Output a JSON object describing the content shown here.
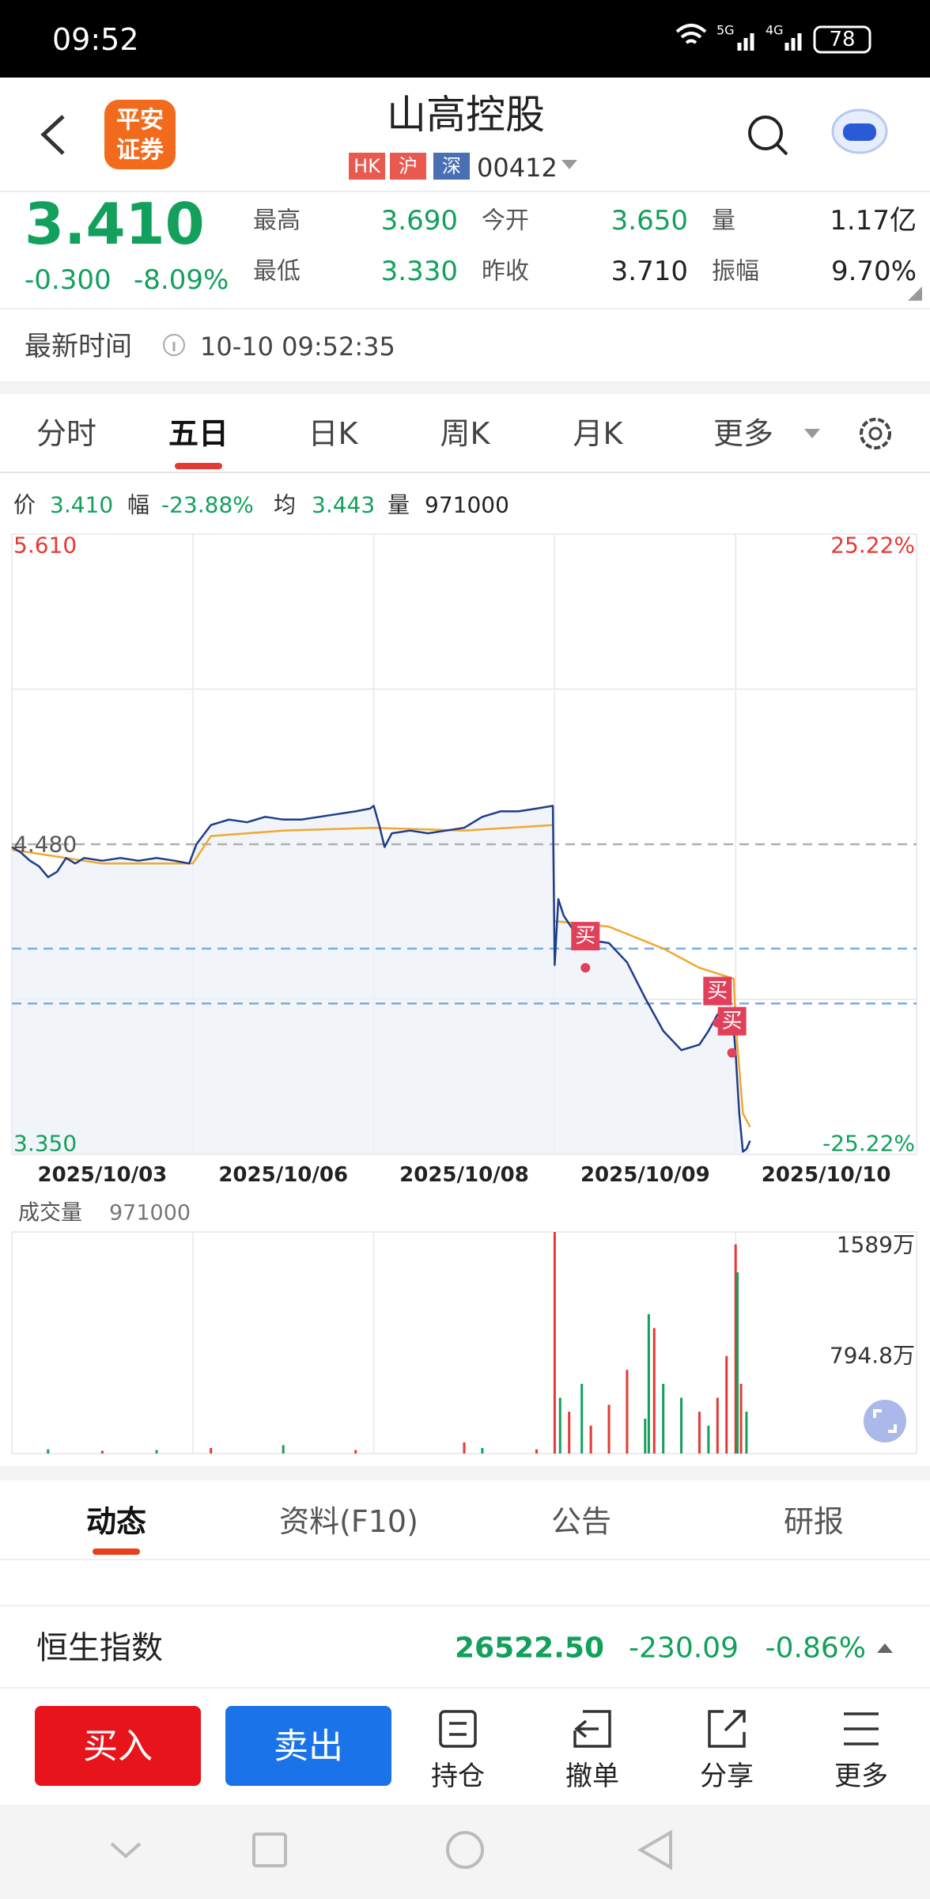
{
  "status_bar": {
    "time": "09:52",
    "network": [
      "5G",
      "4G"
    ],
    "battery": "78"
  },
  "header": {
    "logo": [
      "平安",
      "证券"
    ],
    "title": "山高控股",
    "markets": [
      "HK",
      "沪",
      "深"
    ],
    "code": "00412"
  },
  "quote": {
    "price": "3.410",
    "change": "-0.300",
    "change_pct": "-8.09%",
    "stats": [
      {
        "label": "最高",
        "value": "3.690"
      },
      {
        "label": "今开",
        "value": "3.650"
      },
      {
        "label": "量",
        "value": "1.17亿"
      },
      {
        "label": "最低",
        "value": "3.330"
      },
      {
        "label": "昨收",
        "value": "3.710"
      },
      {
        "label": "振幅",
        "value": "9.70%"
      }
    ]
  },
  "update": {
    "label": "最新时间",
    "time": "10-10 09:52:35"
  },
  "chart_tabs": {
    "items": [
      "分时",
      "五日",
      "日K",
      "周K",
      "月K",
      "更多"
    ],
    "active": 1
  },
  "info_line": [
    {
      "label": "价",
      "value": "3.410"
    },
    {
      "label": "幅",
      "value": "-23.88%"
    },
    {
      "label": "均",
      "value": "3.443"
    },
    {
      "label": "量",
      "value": "971000"
    }
  ],
  "chart_data": [
    {
      "type": "line",
      "area": true,
      "series": [
        {
          "color": "#1f3c88",
          "x": [
            0,
            0.05,
            0.1,
            0.15,
            0.2,
            0.25,
            0.3,
            0.35,
            0.4,
            0.5,
            0.6,
            0.7,
            0.8,
            0.9,
            0.98,
            1.02,
            1.1,
            1.2,
            1.3,
            1.4,
            1.5,
            1.6,
            1.7,
            1.8,
            1.9,
            1.98,
            2.0,
            2.03,
            2.06,
            2.1,
            2.2,
            2.3,
            2.4,
            2.5,
            2.6,
            2.7,
            2.8,
            2.9,
            2.99,
            3.0,
            3.02,
            3.05,
            3.1,
            3.2,
            3.3,
            3.4,
            3.5,
            3.6,
            3.7,
            3.8,
            3.85,
            3.9,
            3.95,
            3.99,
            4.0,
            4.02,
            4.04,
            4.06,
            4.08
          ],
          "values": [
            4.47,
            4.45,
            4.42,
            4.4,
            4.36,
            4.38,
            4.43,
            4.41,
            4.43,
            4.42,
            4.43,
            4.42,
            4.43,
            4.42,
            4.41,
            4.48,
            4.55,
            4.57,
            4.56,
            4.58,
            4.57,
            4.57,
            4.58,
            4.59,
            4.6,
            4.61,
            4.62,
            4.55,
            4.47,
            4.52,
            4.53,
            4.52,
            4.53,
            4.54,
            4.58,
            4.6,
            4.6,
            4.61,
            4.62,
            4.04,
            4.28,
            4.22,
            4.17,
            4.13,
            4.12,
            4.05,
            3.92,
            3.8,
            3.73,
            3.75,
            3.8,
            3.86,
            3.86,
            3.8,
            3.72,
            3.5,
            3.36,
            3.37,
            3.4
          ]
        },
        {
          "color": "#f0a830",
          "x": [
            0,
            0.5,
            1.0,
            1.1,
            1.5,
            2.0,
            2.5,
            2.99,
            3.0,
            3.0,
            3.3,
            3.6,
            3.8,
            3.99,
            4.0,
            4.04,
            4.08
          ],
          "values": [
            4.46,
            4.41,
            4.41,
            4.51,
            4.53,
            4.54,
            4.53,
            4.55,
            null,
            4.2,
            4.18,
            4.1,
            4.03,
            3.99,
            3.83,
            3.5,
            3.45
          ]
        }
      ],
      "xlim": [
        0,
        5
      ],
      "xticks": [
        {
          "value": 0.5,
          "label": "2025/10/03"
        },
        {
          "value": 1.5,
          "label": "2025/10/06"
        },
        {
          "value": 2.5,
          "label": "2025/10/08"
        },
        {
          "value": 3.5,
          "label": "2025/10/09"
        },
        {
          "value": 4.5,
          "label": "2025/10/10"
        }
      ],
      "ylim": [
        3.35,
        5.61
      ],
      "yticks": [
        {
          "value": 5.61,
          "label": "5.610"
        },
        {
          "value": 4.48,
          "label": "4.480"
        },
        {
          "value": 3.35,
          "label": "3.350"
        }
      ],
      "y2lim": [
        -25.22,
        25.22
      ],
      "y2ticks": [
        {
          "value": 25.22,
          "label": "25.22%"
        },
        {
          "value": -25.22,
          "label": "-25.22%"
        }
      ],
      "grid_x": [
        1,
        2,
        3,
        4
      ],
      "grid_y": [
        5.045,
        3.915
      ],
      "reference_lines": [
        {
          "value": 4.48,
          "color": "#b0b0b0"
        },
        {
          "value": 4.1,
          "color": "#7aaee0"
        },
        {
          "value": 3.9,
          "color": "#7aaee0"
        }
      ],
      "up_color": "#e53935",
      "down_color": "#13a05c",
      "annotations": [
        {
          "text": "买",
          "x": 3.17,
          "value": 4.03
        },
        {
          "text": "买",
          "x": 3.9,
          "value": 3.83
        },
        {
          "text": "买",
          "x": 3.98,
          "value": 3.72
        }
      ]
    },
    {
      "type": "bar",
      "title": "成交量",
      "title_value": "971000",
      "x": [
        0.2,
        0.5,
        0.8,
        1.1,
        1.5,
        1.9,
        2.5,
        2.6,
        2.9,
        3.0,
        3.03,
        3.08,
        3.15,
        3.2,
        3.3,
        3.4,
        3.5,
        3.52,
        3.55,
        3.6,
        3.7,
        3.8,
        3.85,
        3.9,
        3.95,
        4.0,
        4.01,
        4.03,
        4.06
      ],
      "values": [
        30,
        20,
        25,
        40,
        60,
        25,
        80,
        40,
        30,
        1589,
        400,
        300,
        500,
        200,
        350,
        600,
        250,
        1000,
        900,
        500,
        400,
        300,
        200,
        400,
        700,
        1500,
        1300,
        500,
        300
      ],
      "colors": [
        "#13a05c",
        "#e53935",
        "#13a05c",
        "#e53935",
        "#13a05c",
        "#e53935",
        "#e53935",
        "#13a05c",
        "#e53935",
        "#e53935",
        "#13a05c",
        "#e53935",
        "#13a05c",
        "#e53935",
        "#e53935",
        "#e53935",
        "#13a05c",
        "#13a05c",
        "#e53935",
        "#13a05c",
        "#13a05c",
        "#e53935",
        "#13a05c",
        "#e53935",
        "#e53935",
        "#e53935",
        "#13a05c",
        "#e53935",
        "#13a05c"
      ],
      "xlim": [
        0,
        5
      ],
      "ylim": [
        0,
        1589
      ],
      "yticks": [
        {
          "value": 1589,
          "label": "1589万"
        },
        {
          "value": 794.8,
          "label": "794.8万"
        }
      ],
      "grid_x": [
        1,
        2,
        3,
        4
      ]
    }
  ],
  "bottom_tabs": {
    "items": [
      "动态",
      "资料(F10)",
      "公告",
      "研报"
    ],
    "active": 0
  },
  "index_ticker": {
    "name": "恒生指数",
    "value": "26522.50",
    "change": "-230.09",
    "change_pct": "-0.86%"
  },
  "actions": {
    "buy": "买入",
    "sell": "卖出",
    "tools": [
      "持仓",
      "撤单",
      "分享",
      "更多"
    ]
  }
}
